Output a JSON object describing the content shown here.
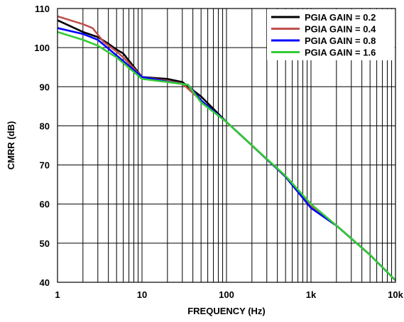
{
  "chart_data": {
    "type": "line",
    "title": "",
    "xlabel": "FREQUENCY (Hz)",
    "ylabel": "CMRR (dB)",
    "xscale": "log",
    "xlim": [
      1,
      10000
    ],
    "ylim": [
      40,
      110
    ],
    "grid": true,
    "legend_position": "top-right",
    "x_ticks": [
      {
        "value": 1,
        "label": "1"
      },
      {
        "value": 10,
        "label": "10"
      },
      {
        "value": 100,
        "label": "100"
      },
      {
        "value": 1000,
        "label": "1k"
      },
      {
        "value": 10000,
        "label": "10k"
      }
    ],
    "y_ticks": [
      {
        "value": 40,
        "label": "40"
      },
      {
        "value": 50,
        "label": "50"
      },
      {
        "value": 60,
        "label": "60"
      },
      {
        "value": 70,
        "label": "70"
      },
      {
        "value": 80,
        "label": "80"
      },
      {
        "value": 90,
        "label": "90"
      },
      {
        "value": 100,
        "label": "100"
      },
      {
        "value": 110,
        "label": "110"
      }
    ],
    "series": [
      {
        "name": "PGIA GAIN = 0.2",
        "color": "#000000",
        "points": [
          [
            1,
            107.0
          ],
          [
            2,
            104.0
          ],
          [
            3,
            102.7
          ],
          [
            4,
            101.0
          ],
          [
            5,
            99.5
          ],
          [
            6,
            98.5
          ],
          [
            10,
            92.5
          ],
          [
            20,
            92.0
          ],
          [
            30,
            91.2
          ],
          [
            50,
            87.5
          ],
          [
            100,
            81.0
          ],
          [
            200,
            75.0
          ],
          [
            500,
            67.0
          ],
          [
            1000,
            59.0
          ],
          [
            2000,
            54.5
          ],
          [
            5000,
            47.0
          ],
          [
            10000,
            40.5
          ]
        ]
      },
      {
        "name": "PGIA GAIN = 0.4",
        "color": "#c0504d",
        "points": [
          [
            1,
            108.0
          ],
          [
            2,
            106.0
          ],
          [
            2.6,
            105.0
          ],
          [
            3.5,
            101.5
          ],
          [
            5,
            99.0
          ],
          [
            6,
            97.5
          ],
          [
            10,
            92.5
          ],
          [
            20,
            91.5
          ],
          [
            30,
            90.8
          ],
          [
            50,
            86.5
          ],
          [
            100,
            81.0
          ],
          [
            200,
            75.0
          ],
          [
            500,
            67.0
          ],
          [
            1000,
            59.5
          ],
          [
            2000,
            54.5
          ],
          [
            5000,
            47.0
          ],
          [
            10000,
            40.5
          ]
        ]
      },
      {
        "name": "PGIA GAIN = 0.8",
        "color": "#0000ff",
        "points": [
          [
            1,
            105.0
          ],
          [
            2,
            103.5
          ],
          [
            3,
            102.0
          ],
          [
            5,
            98.0
          ],
          [
            10,
            92.5
          ],
          [
            20,
            91.3
          ],
          [
            35,
            90.5
          ],
          [
            50,
            86.5
          ],
          [
            100,
            81.0
          ],
          [
            200,
            75.0
          ],
          [
            500,
            67.0
          ],
          [
            1000,
            59.0
          ],
          [
            2000,
            54.5
          ],
          [
            5000,
            47.0
          ],
          [
            10000,
            40.5
          ]
        ]
      },
      {
        "name": "PGIA GAIN = 1.6",
        "color": "#33cc33",
        "points": [
          [
            1,
            104.0
          ],
          [
            2,
            102.0
          ],
          [
            3,
            100.5
          ],
          [
            5,
            97.5
          ],
          [
            10,
            92.0
          ],
          [
            20,
            91.2
          ],
          [
            35,
            90.5
          ],
          [
            50,
            86.0
          ],
          [
            100,
            81.0
          ],
          [
            200,
            75.0
          ],
          [
            500,
            67.2
          ],
          [
            1000,
            60.0
          ],
          [
            2000,
            54.5
          ],
          [
            5000,
            47.0
          ],
          [
            10000,
            40.5
          ]
        ]
      }
    ]
  }
}
